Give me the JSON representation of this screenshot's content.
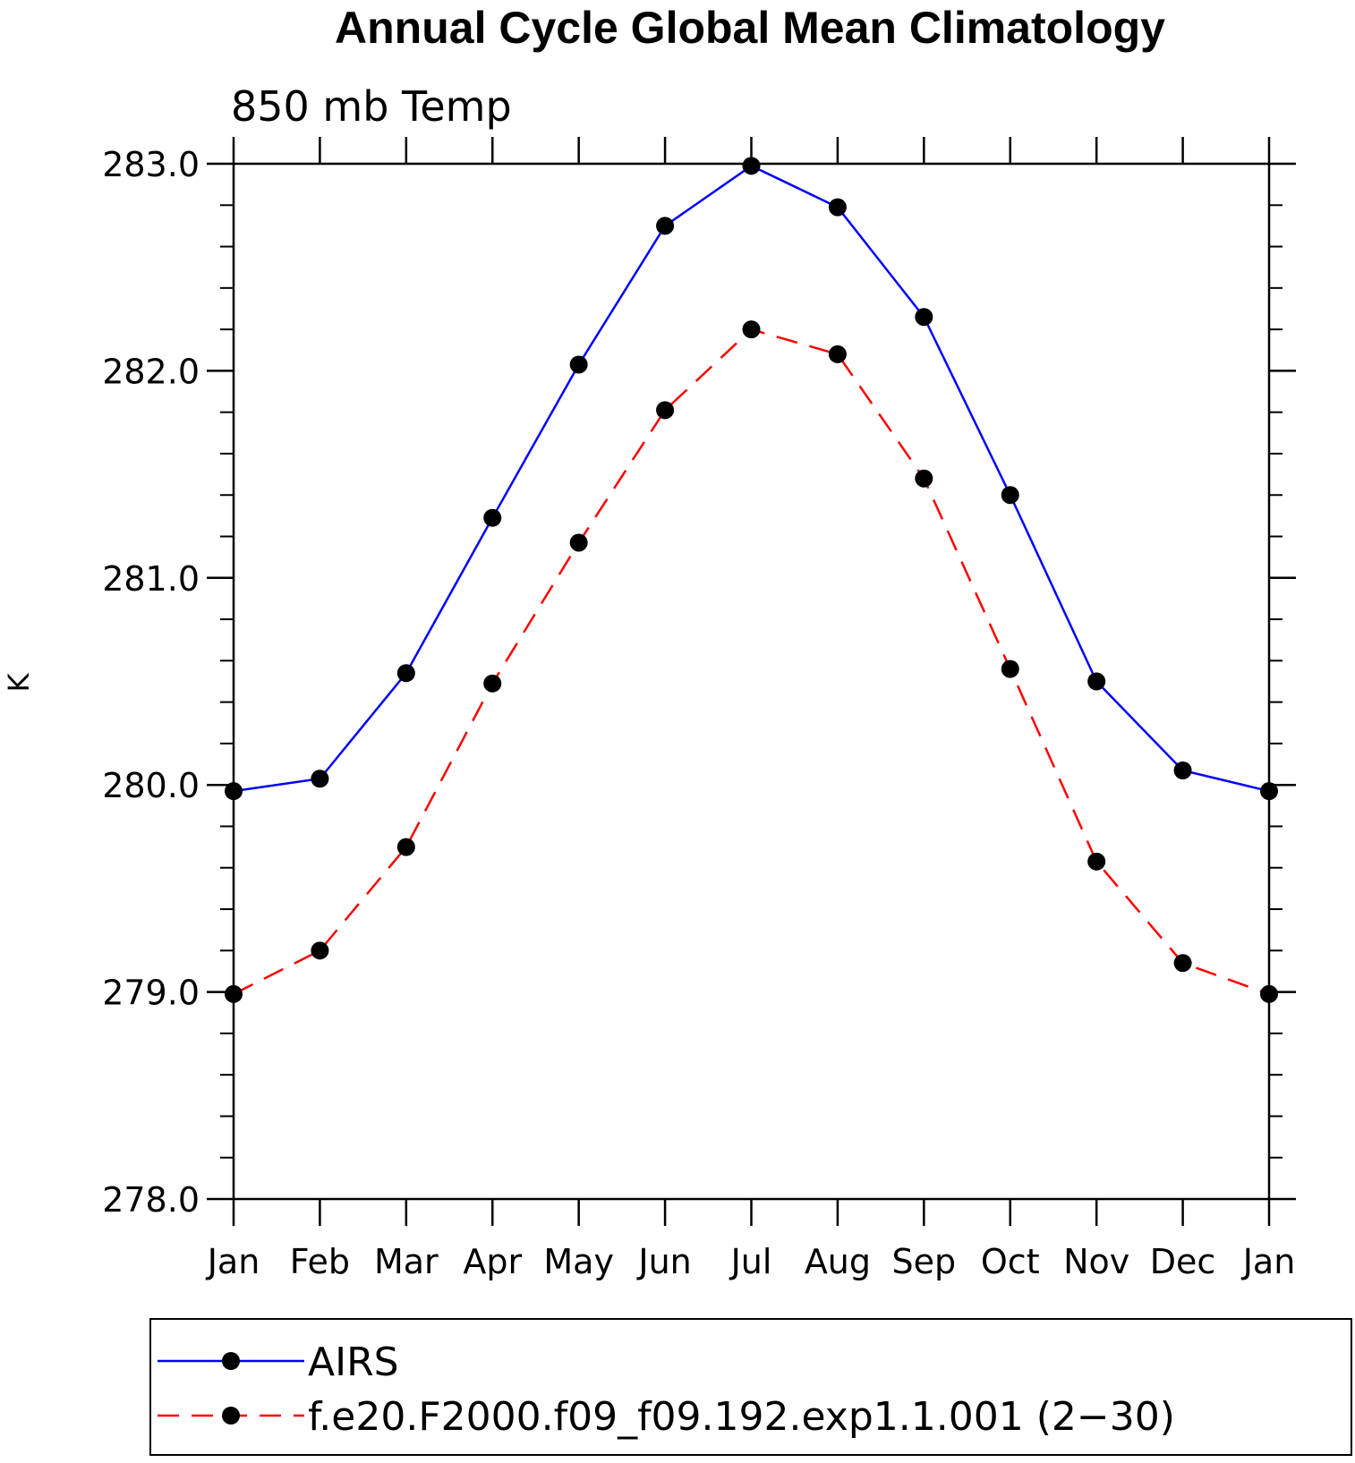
{
  "chart_data": {
    "type": "line",
    "title": "Annual Cycle Global Mean Climatology",
    "subtitle": "850 mb Temp",
    "xlabel": "",
    "ylabel": "K",
    "categories": [
      "Jan",
      "Feb",
      "Mar",
      "Apr",
      "May",
      "Jun",
      "Jul",
      "Aug",
      "Sep",
      "Oct",
      "Nov",
      "Dec",
      "Jan"
    ],
    "ylim": [
      278.0,
      283.0
    ],
    "yticks": [
      "278.0",
      "279.0",
      "280.0",
      "281.0",
      "282.0",
      "283.0"
    ],
    "ytick_values": [
      278.0,
      279.0,
      280.0,
      281.0,
      282.0,
      283.0
    ],
    "minor_step": 0.2,
    "legend_position": "bottom",
    "series": [
      {
        "name": "AIRS",
        "color": "#0000ff",
        "dash": "solid",
        "values": [
          279.97,
          280.03,
          280.54,
          281.29,
          282.03,
          282.7,
          282.99,
          282.79,
          282.26,
          281.4,
          280.5,
          280.07,
          279.97
        ]
      },
      {
        "name": "f.e20.F2000.f09_f09.192.exp1.1.001 (2−30)",
        "color": "#ff0000",
        "dash": "dashed",
        "values": [
          278.99,
          279.2,
          279.7,
          280.49,
          281.17,
          281.81,
          282.2,
          282.08,
          281.48,
          280.56,
          279.63,
          279.14,
          278.99
        ]
      }
    ],
    "marker_color": "#000000",
    "axis_color": "#000000"
  }
}
